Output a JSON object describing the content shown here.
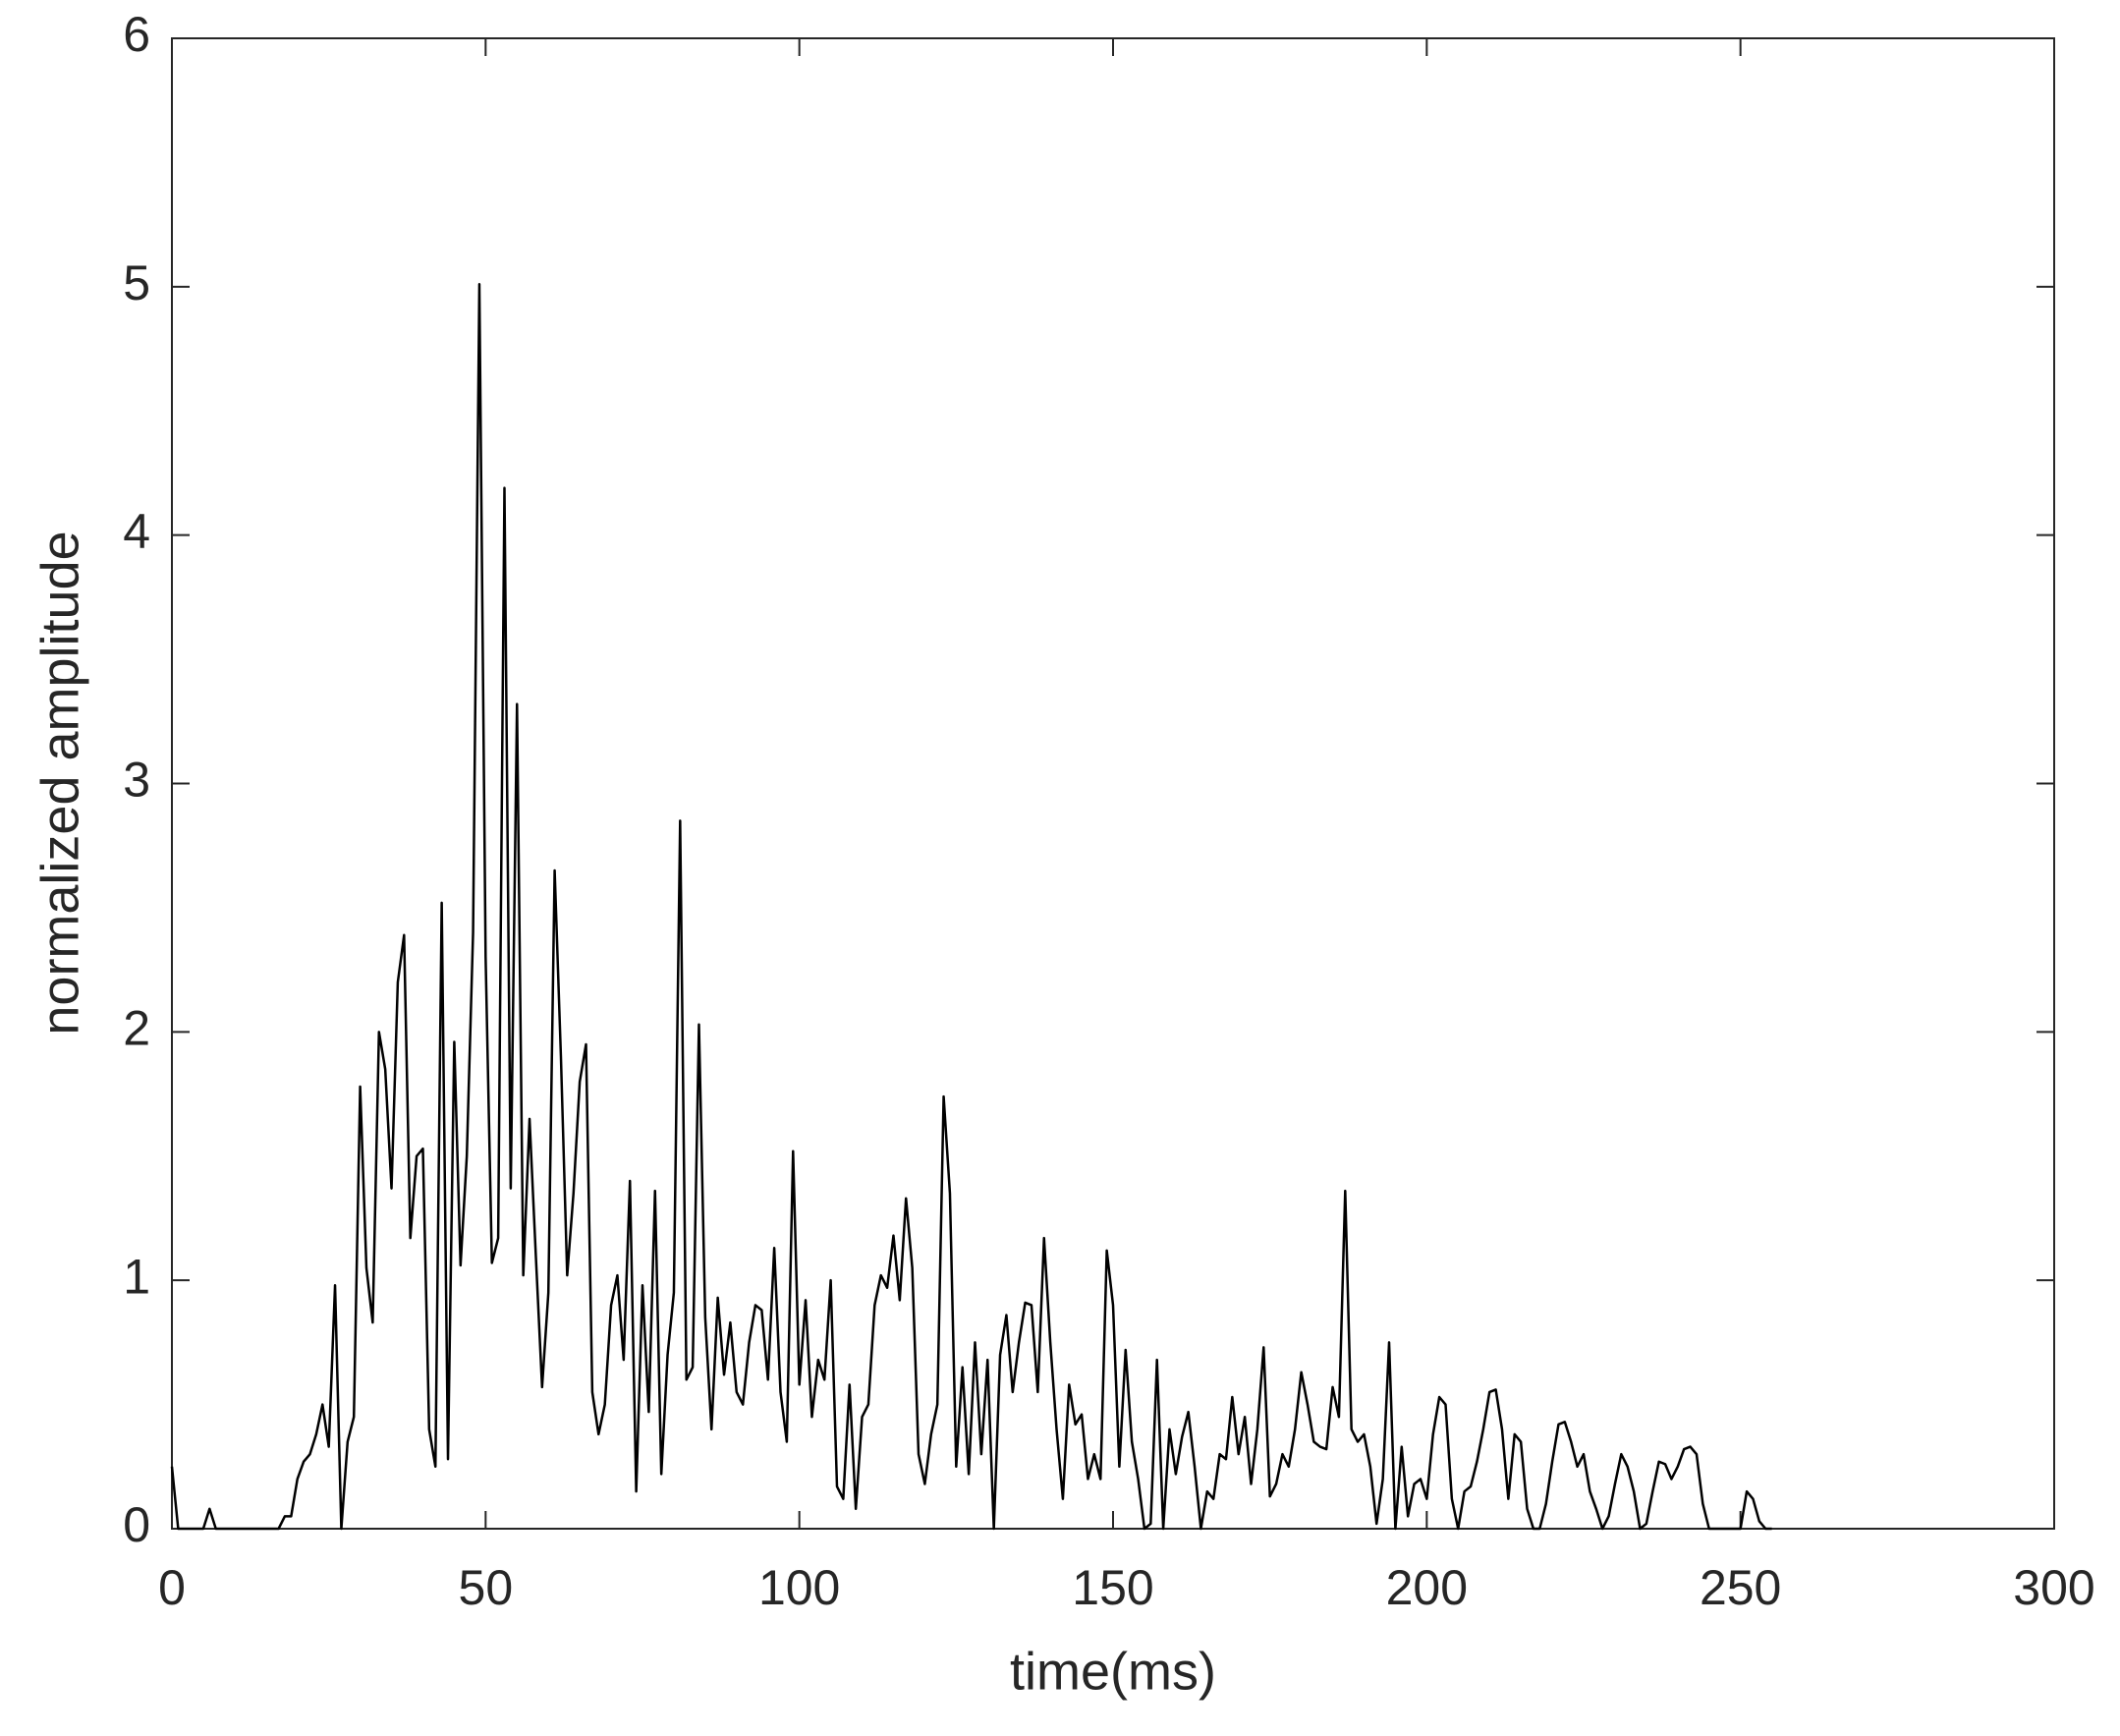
{
  "chart_data": {
    "type": "line",
    "xlabel": "time(ms)",
    "ylabel": "normalized amplitude",
    "x": [
      0,
      1,
      5,
      6,
      7,
      17,
      18,
      19,
      20,
      21,
      22,
      23,
      24,
      25,
      26,
      27,
      28,
      29,
      30,
      31,
      32,
      33,
      34,
      35,
      36,
      37,
      38,
      39,
      40,
      41,
      42,
      43,
      44,
      45,
      46,
      47,
      48,
      49,
      50,
      51,
      52,
      53,
      54,
      55,
      56,
      57,
      58,
      59,
      60,
      61,
      62,
      63,
      64,
      65,
      66,
      67,
      68,
      69,
      70,
      71,
      72,
      73,
      74,
      75,
      76,
      77,
      78,
      79,
      80,
      81,
      82,
      83,
      84,
      85,
      86,
      87,
      88,
      89,
      90,
      91,
      92,
      93,
      94,
      95,
      96,
      97,
      98,
      99,
      100,
      101,
      102,
      103,
      104,
      105,
      106,
      107,
      108,
      109,
      110,
      111,
      112,
      113,
      114,
      115,
      116,
      117,
      118,
      119,
      120,
      121,
      122,
      123,
      124,
      125,
      126,
      127,
      128,
      129,
      130,
      131,
      132,
      133,
      134,
      135,
      136,
      137,
      138,
      139,
      140,
      141,
      142,
      143,
      144,
      145,
      146,
      147,
      148,
      149,
      150,
      151,
      152,
      153,
      154,
      155,
      156,
      157,
      158,
      159,
      160,
      161,
      162,
      163,
      164,
      165,
      166,
      167,
      168,
      169,
      170,
      171,
      172,
      173,
      174,
      175,
      176,
      177,
      178,
      179,
      180,
      181,
      182,
      183,
      184,
      185,
      186,
      187,
      188,
      189,
      190,
      191,
      192,
      193,
      194,
      195,
      196,
      197,
      198,
      199,
      200,
      201,
      202,
      203,
      204,
      205,
      206,
      207,
      208,
      209,
      210,
      211,
      212,
      213,
      214,
      215,
      216,
      217,
      218,
      219,
      220,
      221,
      222,
      223,
      224,
      225,
      226,
      227,
      228,
      229,
      230,
      231,
      232,
      233,
      234,
      235,
      236,
      237,
      238,
      239,
      240,
      241,
      242,
      243,
      244,
      245,
      250,
      251,
      252,
      253,
      254,
      255
    ],
    "series": [
      {
        "name": "amplitude",
        "color": "#000000",
        "values": [
          0.25,
          0,
          0,
          0.08,
          0,
          0,
          0.05,
          0.05,
          0.2,
          0.27,
          0.3,
          0.38,
          0.5,
          0.33,
          0.98,
          0,
          0.35,
          0.45,
          1.78,
          1.05,
          0.83,
          2.0,
          1.85,
          1.37,
          2.2,
          2.39,
          1.17,
          1.5,
          1.53,
          0.4,
          0.25,
          2.52,
          0.28,
          1.96,
          1.06,
          1.5,
          2.4,
          5.01,
          2.3,
          1.07,
          1.17,
          4.19,
          1.37,
          3.32,
          1.02,
          1.65,
          1.1,
          0.57,
          0.95,
          2.65,
          1.9,
          1.02,
          1.35,
          1.8,
          1.95,
          0.55,
          0.38,
          0.5,
          0.9,
          1.02,
          0.68,
          1.4,
          0.15,
          0.98,
          0.47,
          1.36,
          0.22,
          0.7,
          0.95,
          2.85,
          0.6,
          0.65,
          2.03,
          0.85,
          0.4,
          0.93,
          0.62,
          0.83,
          0.55,
          0.5,
          0.75,
          0.9,
          0.88,
          0.6,
          1.13,
          0.55,
          0.35,
          1.52,
          0.58,
          0.92,
          0.45,
          0.68,
          0.6,
          1.0,
          0.17,
          0.12,
          0.58,
          0.08,
          0.45,
          0.5,
          0.9,
          1.02,
          0.97,
          1.18,
          0.92,
          1.33,
          1.05,
          0.3,
          0.18,
          0.38,
          0.5,
          1.74,
          1.35,
          0.25,
          0.65,
          0.22,
          0.75,
          0.3,
          0.68,
          0,
          0.7,
          0.86,
          0.55,
          0.75,
          0.91,
          0.9,
          0.55,
          1.17,
          0.75,
          0.4,
          0.12,
          0.58,
          0.42,
          0.46,
          0.2,
          0.3,
          0.2,
          1.12,
          0.9,
          0.25,
          0.72,
          0.35,
          0.2,
          0,
          0.02,
          0.68,
          0,
          0.4,
          0.22,
          0.37,
          0.47,
          0.25,
          0,
          0.15,
          0.12,
          0.3,
          0.28,
          0.53,
          0.3,
          0.45,
          0.18,
          0.4,
          0.73,
          0.13,
          0.18,
          0.3,
          0.25,
          0.4,
          0.63,
          0.5,
          0.35,
          0.33,
          0.32,
          0.57,
          0.45,
          1.36,
          0.4,
          0.35,
          0.38,
          0.25,
          0.02,
          0.2,
          0.75,
          0,
          0.33,
          0.05,
          0.18,
          0.2,
          0.12,
          0.38,
          0.53,
          0.5,
          0.12,
          0,
          0.15,
          0.17,
          0.27,
          0.4,
          0.55,
          0.56,
          0.4,
          0.12,
          0.38,
          0.35,
          0.08,
          0,
          0,
          0.1,
          0.27,
          0.42,
          0.43,
          0.35,
          0.25,
          0.3,
          0.15,
          0.08,
          0,
          0.05,
          0.18,
          0.3,
          0.25,
          0.15,
          0,
          0.02,
          0.15,
          0.27,
          0.26,
          0.2,
          0.25,
          0.32,
          0.33,
          0.3,
          0.1,
          0,
          0,
          0.15,
          0.12,
          0.03,
          0,
          0
        ]
      }
    ],
    "xlim": [
      0,
      300
    ],
    "xticks": [
      0,
      50,
      100,
      150,
      200,
      250,
      300
    ],
    "ylim": [
      0,
      6
    ],
    "yticks": [
      0,
      1,
      2,
      3,
      4,
      5,
      6
    ],
    "grid": false
  }
}
